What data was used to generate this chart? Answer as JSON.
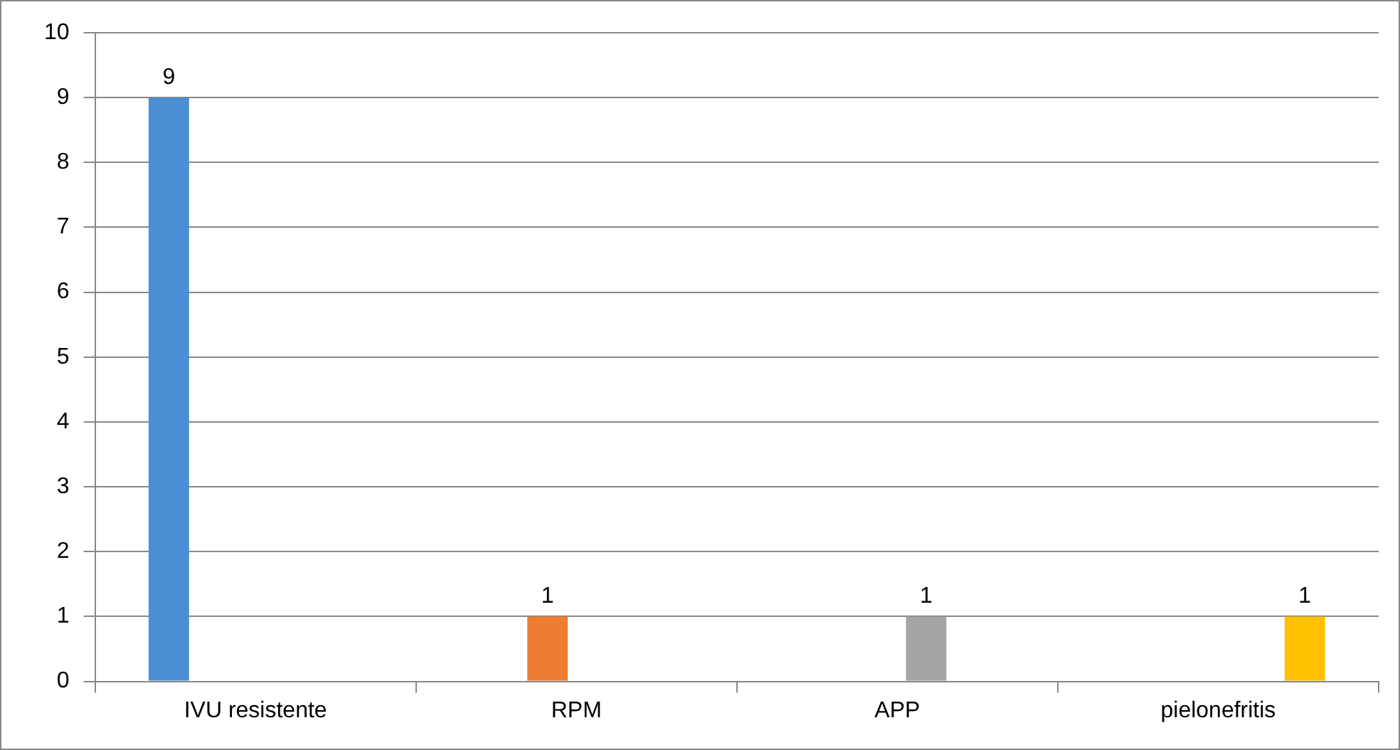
{
  "chart_data": {
    "type": "bar",
    "categories": [
      "IVU resistente",
      "RPM",
      "APP",
      "pielonefritis"
    ],
    "series": [
      {
        "color": "#4a8ed3",
        "values": [
          9,
          null,
          null,
          null
        ]
      },
      {
        "color": "#ed7d31",
        "values": [
          null,
          1,
          null,
          null
        ]
      },
      {
        "color": "#a5a5a5",
        "values": [
          null,
          null,
          1,
          null
        ]
      },
      {
        "color": "#ffc000",
        "values": [
          null,
          null,
          null,
          1
        ]
      }
    ],
    "ylim": [
      0,
      10
    ],
    "yticks": [
      0,
      1,
      2,
      3,
      4,
      5,
      6,
      7,
      8,
      9,
      10
    ],
    "grid": "y",
    "legend": false,
    "data_labels": true
  }
}
